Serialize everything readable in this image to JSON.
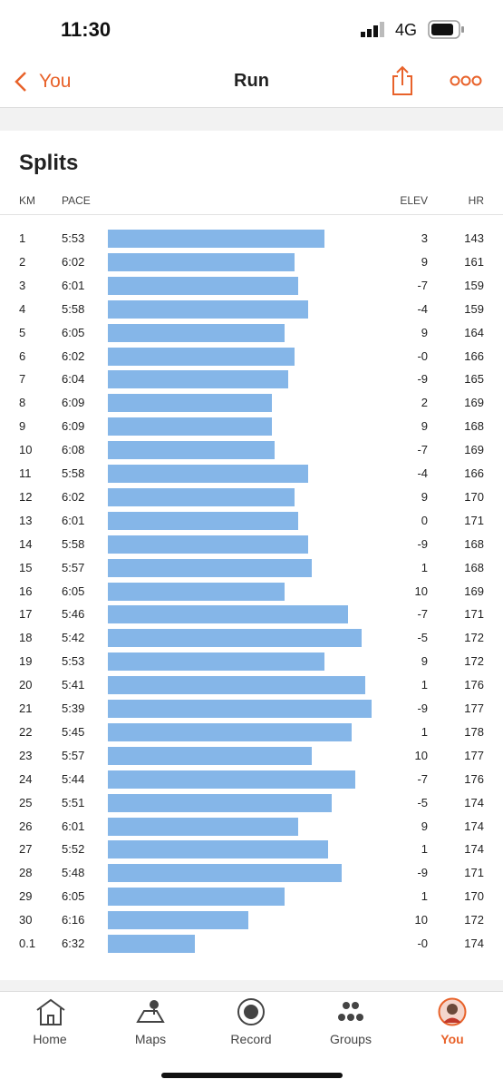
{
  "status_bar": {
    "time": "11:30",
    "network": "4G"
  },
  "nav": {
    "back": "You",
    "title": "Run"
  },
  "splits": {
    "title": "Splits",
    "columns": [
      "KM",
      "PACE",
      "ELEV",
      "HR"
    ],
    "rows": [
      {
        "km": 1,
        "pace": "5:53",
        "elev": "3",
        "hr": 143
      },
      {
        "km": 2,
        "pace": "6:02",
        "elev": "9",
        "hr": 161
      },
      {
        "km": 3,
        "pace": "6:01",
        "elev": "-7",
        "hr": 159
      },
      {
        "km": 4,
        "pace": "5:58",
        "elev": "-4",
        "hr": 159
      },
      {
        "km": 5,
        "pace": "6:05",
        "elev": "9",
        "hr": 164
      },
      {
        "km": 6,
        "pace": "6:02",
        "elev": "-0",
        "hr": 166
      },
      {
        "km": 7,
        "pace": "6:04",
        "elev": "-9",
        "hr": 165
      },
      {
        "km": 8,
        "pace": "6:09",
        "elev": "2",
        "hr": 169
      },
      {
        "km": 9,
        "pace": "6:09",
        "elev": "9",
        "hr": 168
      },
      {
        "km": 10,
        "pace": "6:08",
        "elev": "-7",
        "hr": 169
      },
      {
        "km": 11,
        "pace": "5:58",
        "elev": "-4",
        "hr": 166
      },
      {
        "km": 12,
        "pace": "6:02",
        "elev": "9",
        "hr": 170
      },
      {
        "km": 13,
        "pace": "6:01",
        "elev": "0",
        "hr": 171
      },
      {
        "km": 14,
        "pace": "5:58",
        "elev": "-9",
        "hr": 168
      },
      {
        "km": 15,
        "pace": "5:57",
        "elev": "1",
        "hr": 168
      },
      {
        "km": 16,
        "pace": "6:05",
        "elev": "10",
        "hr": 169
      },
      {
        "km": 17,
        "pace": "5:46",
        "elev": "-7",
        "hr": 171
      },
      {
        "km": 18,
        "pace": "5:42",
        "elev": "-5",
        "hr": 172
      },
      {
        "km": 19,
        "pace": "5:53",
        "elev": "9",
        "hr": 172
      },
      {
        "km": 20,
        "pace": "5:41",
        "elev": "1",
        "hr": 176
      },
      {
        "km": 21,
        "pace": "5:39",
        "elev": "-9",
        "hr": 177
      },
      {
        "km": 22,
        "pace": "5:45",
        "elev": "1",
        "hr": 178
      },
      {
        "km": 23,
        "pace": "5:57",
        "elev": "10",
        "hr": 177
      },
      {
        "km": 24,
        "pace": "5:44",
        "elev": "-7",
        "hr": 176
      },
      {
        "km": 25,
        "pace": "5:51",
        "elev": "-5",
        "hr": 174
      },
      {
        "km": 26,
        "pace": "6:01",
        "elev": "9",
        "hr": 174
      },
      {
        "km": 27,
        "pace": "5:52",
        "elev": "1",
        "hr": 174
      },
      {
        "km": 28,
        "pace": "5:48",
        "elev": "-9",
        "hr": 171
      },
      {
        "km": 29,
        "pace": "6:05",
        "elev": "1",
        "hr": 170
      },
      {
        "km": 30,
        "pace": "6:16",
        "elev": "10",
        "hr": 172
      },
      {
        "km": 0.1,
        "pace": "6:32",
        "elev": "-0",
        "hr": 174
      }
    ]
  },
  "tab_bar": {
    "tabs": [
      "Home",
      "Maps",
      "Record",
      "Groups",
      "You"
    ]
  }
}
